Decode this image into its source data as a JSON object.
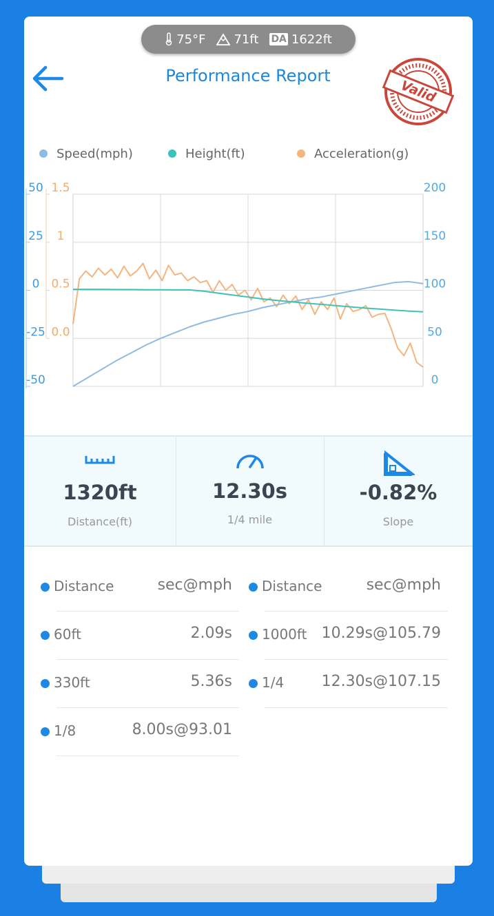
{
  "status_bar": {
    "temperature": "75°F",
    "altitude": "71ft",
    "da_label": "DA",
    "density_altitude": "1622ft"
  },
  "header": {
    "title": "Performance Report",
    "stamp": "Valid"
  },
  "chart_data": {
    "type": "line",
    "series": [
      {
        "name": "Speed(mph)",
        "color": "#8ebbe3",
        "axis": "y2",
        "values": [
          0,
          9,
          18,
          27,
          35,
          43,
          50,
          56,
          62,
          67,
          71,
          75,
          78,
          82,
          85,
          88,
          91,
          93,
          96,
          99,
          102,
          105,
          108,
          109,
          107
        ]
      },
      {
        "name": "Height(ft)",
        "color": "#3cc3b9",
        "axis": "y",
        "values": [
          0.5,
          0.5,
          0.5,
          0.4,
          0.4,
          0.3,
          0.3,
          0.2,
          0.2,
          -0.5,
          -1.5,
          -2.5,
          -3.5,
          -4.5,
          -5.3,
          -6,
          -6.7,
          -7.3,
          -8,
          -8.6,
          -9.2,
          -9.8,
          -10.3,
          -10.8,
          -11.2
        ]
      },
      {
        "name": "Acceleration(g)",
        "color": "#f5b47e",
        "axis": "y3",
        "values": [
          0.15,
          0.62,
          0.7,
          0.64,
          0.73,
          0.66,
          0.72,
          0.63,
          0.75,
          0.65,
          0.7,
          0.78,
          0.62,
          0.71,
          0.6,
          0.76,
          0.66,
          0.68,
          0.6,
          0.64,
          0.58,
          0.6,
          0.48,
          0.6,
          0.5,
          0.56,
          0.45,
          0.5,
          0.4,
          0.52,
          0.38,
          0.42,
          0.33,
          0.45,
          0.36,
          0.44,
          0.3,
          0.4,
          0.25,
          0.38,
          0.3,
          0.42,
          0.2,
          0.36,
          0.28,
          0.3,
          0.34,
          0.22,
          0.25,
          0.26,
          0.1,
          -0.1,
          -0.18,
          -0.05,
          -0.25,
          -0.3
        ]
      }
    ],
    "ylim": [
      -50,
      50
    ],
    "yticks": [
      -50,
      -25,
      0,
      25,
      50
    ],
    "y3lim": [
      -0.5,
      1.5
    ],
    "y3ticks": [
      {
        "value": 0,
        "label": "0.0"
      },
      0.5,
      1,
      1.5
    ],
    "y2lim": [
      0,
      200
    ],
    "y2ticks": [
      0,
      50,
      100,
      150,
      200
    ],
    "grid": true
  },
  "stats": [
    {
      "value": "1320ft",
      "label": "Distance(ft)"
    },
    {
      "value": "12.30s",
      "label": "1/4 mile"
    },
    {
      "value": "-0.82%",
      "label": "Slope"
    }
  ],
  "splits": [
    {
      "header": [
        "Distance",
        "sec@mph"
      ],
      "rows": [
        [
          "60ft",
          "2.09s"
        ],
        [
          "330ft",
          "5.36s"
        ],
        [
          "1/8",
          "8.00s@93.01"
        ]
      ]
    },
    {
      "header": [
        "Distance",
        "sec@mph"
      ],
      "rows": [
        [
          "1000ft",
          "10.29s@105.79"
        ],
        [
          "1/4",
          "12.30s@107.15"
        ]
      ]
    }
  ]
}
